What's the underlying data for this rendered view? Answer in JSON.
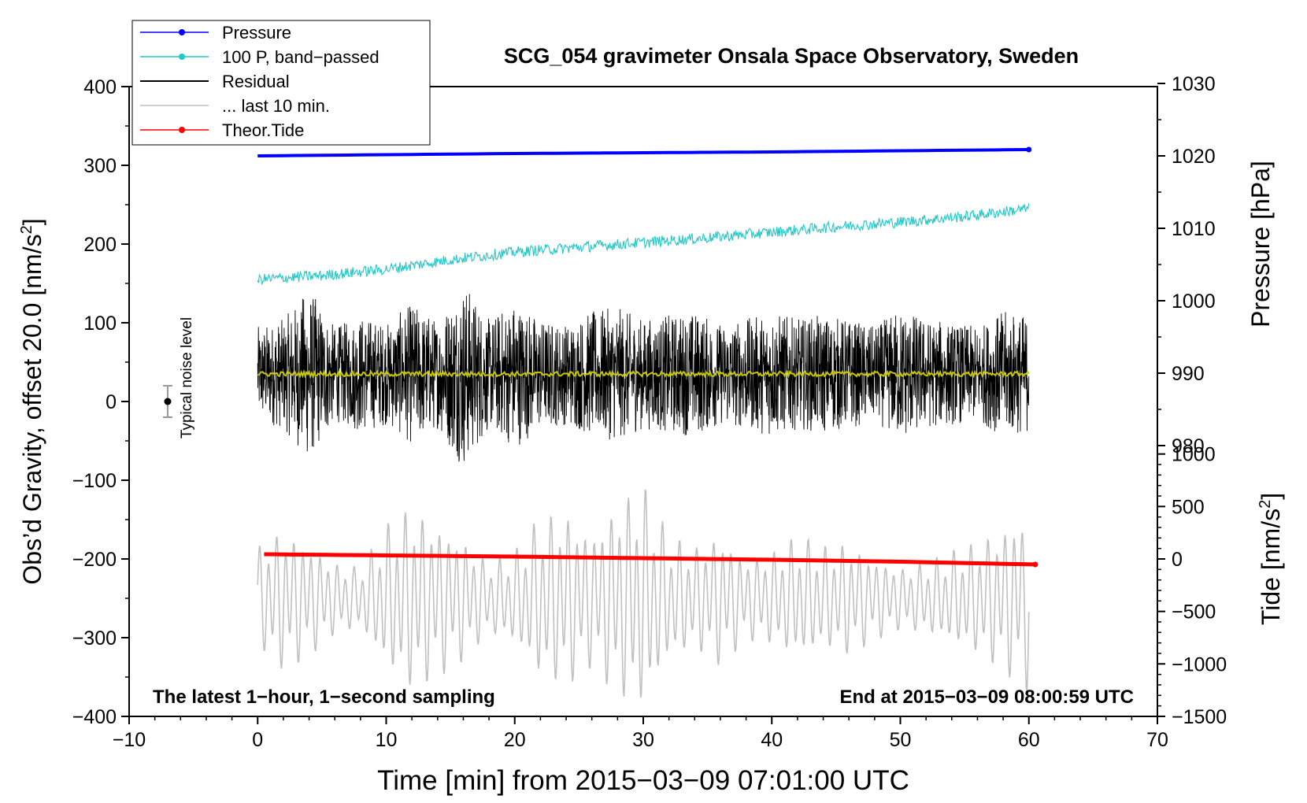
{
  "chart_data": {
    "type": "line",
    "title": "SCG_054 gravimeter Onsala Space Observatory, Sweden",
    "xlabel": "Time [min] from 2015−03−09 07:01:00 UTC",
    "ylabel_left": "Obs’d Gravity, offset 20.0 [nm/s",
    "ylabel_left_sup": "2",
    "ylabel_left_end": "]",
    "ylabel_pressure": "Pressure [hPa]",
    "ylabel_tide": "Tide [nm/s",
    "ylabel_tide_sup": "2",
    "ylabel_tide_end": "]",
    "xlim": [
      -10,
      70
    ],
    "ylim": [
      -400,
      400
    ],
    "x_ticks": [
      -10,
      0,
      10,
      20,
      30,
      40,
      50,
      60,
      70
    ],
    "x_tick_labels": [
      "−10",
      "0",
      "10",
      "20",
      "30",
      "40",
      "50",
      "60",
      "70"
    ],
    "y_ticks": [
      -400,
      -300,
      -200,
      -100,
      0,
      100,
      200,
      300,
      400
    ],
    "y_tick_labels": [
      "−400",
      "−300",
      "−200",
      "−100",
      "0",
      "100",
      "200",
      "300",
      "400"
    ],
    "pressure_axis": {
      "ticks": [
        980,
        990,
        1000,
        1010,
        1020,
        1030
      ],
      "tick_labels": [
        "980",
        "990",
        "1000",
        "1010",
        "1020",
        "1030"
      ],
      "left_at_value": 1020,
      "left_value": 312,
      "scale_per_hpa": 9.2
    },
    "tide_axis": {
      "ticks": [
        -1500,
        -1000,
        -500,
        0,
        500,
        1000
      ],
      "tick_labels": [
        "−1500",
        "−1000",
        "−500",
        "0",
        "500",
        "1000"
      ],
      "left_at_zero": -200,
      "scale_per_unit": 0.1333
    },
    "annotation_left": "The latest 1−hour, 1−second sampling",
    "annotation_right": "End at 2015−03−09 08:00:59 UTC",
    "noise": {
      "label": "Typical noise level",
      "x": -7,
      "y": 0,
      "err": 20
    },
    "legend": [
      {
        "label": "Pressure",
        "color": "#0000ff",
        "marker": true
      },
      {
        "label": "100 P, band−passed",
        "color": "#20c8c8",
        "marker": true
      },
      {
        "label": "Residual",
        "color": "#000000",
        "marker": false
      },
      {
        "label": "... last 10 min.",
        "color": "#c0c0c0",
        "marker": false
      },
      {
        "label": "Theor.Tide",
        "color": "#ff0000",
        "marker": true
      }
    ],
    "series": [
      {
        "name": "Pressure",
        "color": "#0000ff",
        "x": [
          0,
          10,
          20,
          30,
          40,
          50,
          60
        ],
        "values": [
          312,
          313.5,
          315,
          316,
          317,
          318.5,
          320
        ],
        "unit": "left"
      },
      {
        "name": "100 P, band−passed",
        "color": "#20c8c8",
        "x": [
          0,
          5,
          10,
          15,
          20,
          25,
          30,
          35,
          40,
          45,
          50,
          55,
          60
        ],
        "values": [
          155,
          160,
          168,
          180,
          190,
          196,
          202,
          208,
          215,
          222,
          228,
          235,
          245
        ],
        "noise_amp": 7,
        "unit": "left"
      },
      {
        "name": "Residual",
        "color": "#000000",
        "x": [
          0,
          60
        ],
        "values": [
          35,
          35
        ],
        "envelope": [
          60,
          70,
          110,
          60,
          75,
          65,
          90,
          70,
          120,
          70,
          95,
          70,
          65,
          80,
          85,
          70,
          75,
          80,
          65,
          70,
          80,
          70,
          75,
          70,
          60,
          85,
          70,
          65,
          60,
          80,
          75
        ],
        "unit": "left"
      },
      {
        "name": "Residual mean",
        "color": "#c8c800",
        "x": [
          0,
          60
        ],
        "values": [
          35,
          35
        ],
        "unit": "left"
      },
      {
        "name": "... last 10 min.",
        "color": "#c0c0c0",
        "x": [
          0,
          60
        ],
        "center": -250,
        "amplitude_envelope": [
          50,
          70,
          55,
          35,
          30,
          70,
          90,
          75,
          60,
          35,
          45,
          80,
          85,
          65,
          95,
          110,
          60,
          50,
          65,
          40,
          45,
          60,
          50,
          55,
          40,
          30,
          35,
          45,
          55,
          70,
          90
        ],
        "cycles": 90,
        "unit": "left"
      },
      {
        "name": "Theor.Tide",
        "color": "#ff0000",
        "x": [
          0.5,
          10,
          20,
          30,
          40,
          50,
          60.5
        ],
        "values": [
          -194,
          -195.5,
          -197,
          -199,
          -201,
          -203.5,
          -207
        ],
        "unit": "left"
      }
    ]
  }
}
